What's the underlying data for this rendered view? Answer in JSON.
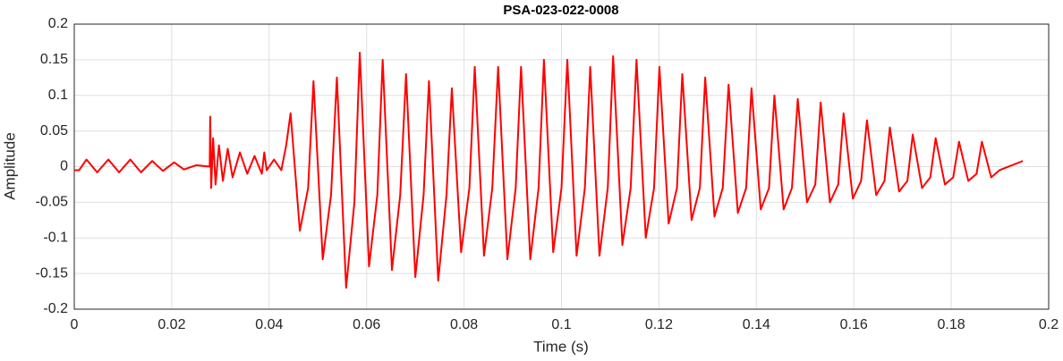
{
  "chart_data": {
    "type": "line",
    "title": "PSA-023-022-0008",
    "xlabel": "Time (s)",
    "ylabel": "Amplitude",
    "color": "#ff0000",
    "grid": true,
    "xlim": [
      0,
      0.2
    ],
    "ylim": [
      -0.2,
      0.2
    ],
    "xticks": [
      0,
      0.02,
      0.04,
      0.06,
      0.08,
      0.1,
      0.12,
      0.14,
      0.16,
      0.18,
      0.2
    ],
    "yticks": [
      -0.2,
      -0.15,
      -0.1,
      -0.05,
      0,
      0.05,
      0.1,
      0.15,
      0.2
    ],
    "x": [
      0,
      0.001,
      0.0025,
      0.0047,
      0.007,
      0.0092,
      0.0115,
      0.0137,
      0.016,
      0.0182,
      0.0205,
      0.0225,
      0.025,
      0.0278,
      0.0279,
      0.0281,
      0.0285,
      0.029,
      0.0297,
      0.0305,
      0.0315,
      0.0325,
      0.034,
      0.0355,
      0.037,
      0.0385,
      0.039,
      0.0395,
      0.041,
      0.0425,
      0.0435,
      0.0444,
      0.0463,
      0.048,
      0.0491,
      0.051,
      0.0527,
      0.0539,
      0.0558,
      0.0575,
      0.0586,
      0.0605,
      0.0622,
      0.0633,
      0.0652,
      0.0669,
      0.0681,
      0.07,
      0.0717,
      0.0728,
      0.0747,
      0.0764,
      0.0775,
      0.0794,
      0.0811,
      0.0822,
      0.0841,
      0.0858,
      0.087,
      0.0889,
      0.0906,
      0.0917,
      0.0936,
      0.0953,
      0.0964,
      0.0983,
      0.1,
      0.1012,
      0.1031,
      0.1048,
      0.1059,
      0.1078,
      0.1095,
      0.1106,
      0.1125,
      0.1142,
      0.1154,
      0.1173,
      0.119,
      0.1201,
      0.122,
      0.1237,
      0.1248,
      0.1267,
      0.1284,
      0.1295,
      0.1314,
      0.1331,
      0.1343,
      0.1362,
      0.1379,
      0.139,
      0.1409,
      0.1426,
      0.1437,
      0.1456,
      0.1473,
      0.1485,
      0.1504,
      0.1521,
      0.1532,
      0.1551,
      0.1568,
      0.1579,
      0.1598,
      0.1615,
      0.1627,
      0.1646,
      0.1663,
      0.1674,
      0.1693,
      0.171,
      0.1721,
      0.174,
      0.1757,
      0.1768,
      0.1787,
      0.1804,
      0.1816,
      0.1835,
      0.1852,
      0.1863,
      0.1882,
      0.1899,
      0.1947
    ],
    "values": [
      -0.005,
      -0.005,
      0.01,
      -0.008,
      0.01,
      -0.008,
      0.01,
      -0.008,
      0.008,
      -0.006,
      0.006,
      -0.004,
      0.002,
      0,
      0.07,
      -0.03,
      0.04,
      -0.025,
      0.03,
      -0.02,
      0.025,
      -0.015,
      0.02,
      -0.01,
      0.015,
      -0.01,
      0.02,
      -0.005,
      0.01,
      -0.005,
      0.03,
      0.075,
      -0.09,
      -0.03,
      0.12,
      -0.13,
      -0.04,
      0.125,
      -0.17,
      -0.05,
      0.16,
      -0.14,
      -0.04,
      0.15,
      -0.145,
      -0.04,
      0.13,
      -0.155,
      -0.04,
      0.12,
      -0.16,
      -0.04,
      0.11,
      -0.12,
      -0.03,
      0.14,
      -0.125,
      -0.03,
      0.14,
      -0.13,
      -0.03,
      0.14,
      -0.13,
      -0.03,
      0.15,
      -0.12,
      -0.03,
      0.15,
      -0.125,
      -0.03,
      0.14,
      -0.125,
      -0.03,
      0.155,
      -0.11,
      -0.03,
      0.15,
      -0.1,
      -0.03,
      0.14,
      -0.08,
      -0.03,
      0.13,
      -0.075,
      -0.03,
      0.125,
      -0.07,
      -0.03,
      0.115,
      -0.065,
      -0.03,
      0.11,
      -0.06,
      -0.03,
      0.1,
      -0.06,
      -0.03,
      0.095,
      -0.05,
      -0.025,
      0.09,
      -0.05,
      -0.025,
      0.075,
      -0.045,
      -0.02,
      0.065,
      -0.04,
      -0.02,
      0.055,
      -0.035,
      -0.02,
      0.045,
      -0.03,
      -0.015,
      0.04,
      -0.025,
      -0.015,
      0.035,
      -0.02,
      -0.01,
      0.035,
      -0.015,
      -0.005,
      0.008
    ]
  }
}
